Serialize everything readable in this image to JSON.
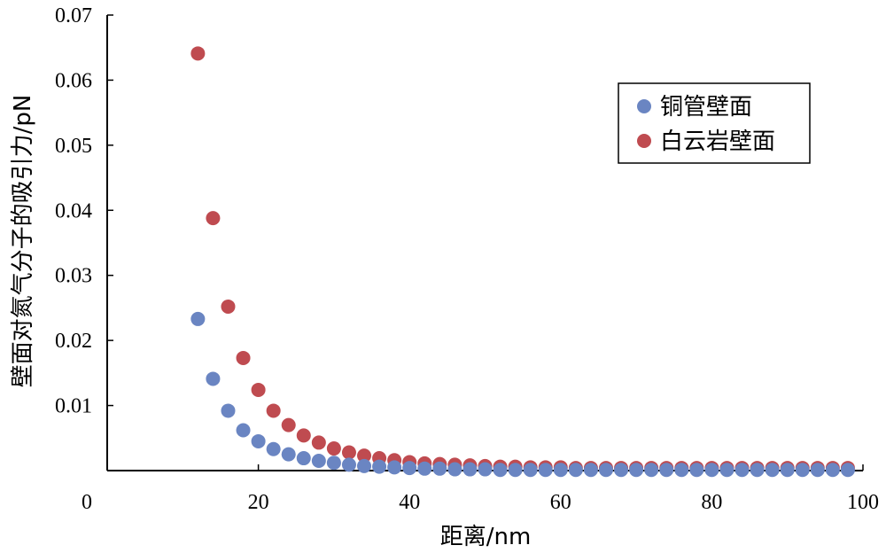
{
  "chart_data": {
    "type": "scatter",
    "title": "",
    "xlabel": "距离/nm",
    "ylabel": "壁面对氮气分子的吸引力/pN",
    "xlim": [
      0,
      100
    ],
    "ylim": [
      0,
      0.07
    ],
    "x_ticks": [
      0,
      20,
      40,
      60,
      80,
      100
    ],
    "y_ticks": [
      0.01,
      0.02,
      0.03,
      0.04,
      0.05,
      0.06,
      0.07
    ],
    "x_tick_labels": [
      "0",
      "20",
      "40",
      "60",
      "80",
      "100"
    ],
    "y_tick_labels": [
      "0.01",
      "0.02",
      "0.03",
      "0.04",
      "0.05",
      "0.06",
      "0.07"
    ],
    "grid": false,
    "legend_position": "top-right",
    "x": [
      12,
      14,
      16,
      18,
      20,
      22,
      24,
      26,
      28,
      30,
      32,
      34,
      36,
      38,
      40,
      42,
      44,
      46,
      48,
      50,
      52,
      54,
      56,
      58,
      60,
      62,
      64,
      66,
      68,
      70,
      72,
      74,
      76,
      78,
      80,
      82,
      84,
      86,
      88,
      90,
      92,
      94,
      96,
      98
    ],
    "series": [
      {
        "name": "铜管壁面",
        "color": "#6a85c2",
        "values": [
          0.0233,
          0.0141,
          0.0092,
          0.0062,
          0.0045,
          0.0033,
          0.0025,
          0.0019,
          0.0015,
          0.0012,
          0.0009,
          0.0007,
          0.0006,
          0.0005,
          0.0004,
          0.0003,
          0.0003,
          0.0002,
          0.0002,
          0.0002,
          0.0001,
          0.0001,
          0.0001,
          0.0001,
          0.0001,
          0.0001,
          0.0001,
          0.0001,
          0.0001,
          0.0001,
          0.0001,
          0.0001,
          0.0001,
          0.0001,
          0.0001,
          0.0001,
          0.0001,
          0.0001,
          0.0001,
          0.0001,
          0.0001,
          0.0001,
          0.0001,
          0.0001
        ]
      },
      {
        "name": "白云岩壁面",
        "color": "#bf4b50",
        "values": [
          0.0641,
          0.0388,
          0.0252,
          0.0173,
          0.0124,
          0.0092,
          0.007,
          0.0054,
          0.0043,
          0.0034,
          0.0028,
          0.0023,
          0.0019,
          0.0016,
          0.0013,
          0.0011,
          0.001,
          0.0009,
          0.0008,
          0.0007,
          0.0006,
          0.0006,
          0.0005,
          0.0005,
          0.0005,
          0.0004,
          0.0004,
          0.0004,
          0.0004,
          0.0004,
          0.0004,
          0.0004,
          0.0004,
          0.0004,
          0.0004,
          0.0004,
          0.0004,
          0.0004,
          0.0004,
          0.0004,
          0.0004,
          0.0004,
          0.0004,
          0.0004
        ]
      }
    ]
  }
}
